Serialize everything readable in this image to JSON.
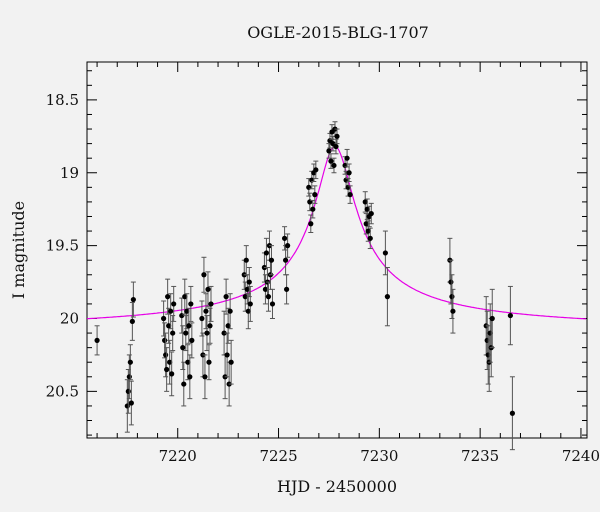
{
  "chart_data": {
    "type": "scatter",
    "title": "OGLE-2015-BLG-1707",
    "xlabel": "HJD - 2450000",
    "ylabel": "I magnitude",
    "xlim": [
      7215.5,
      7240.3
    ],
    "ylim": [
      20.82,
      18.24
    ],
    "x_ticks": [
      7220,
      7225,
      7230,
      7235,
      7240
    ],
    "x_tick_labels": [
      "7220",
      "7225",
      "7230",
      "7235",
      "7240"
    ],
    "y_ticks": [
      18.5,
      19,
      19.5,
      20,
      20.5
    ],
    "y_tick_labels": [
      "18.5",
      "19",
      "19.5",
      "20",
      "20.5"
    ],
    "grid": false,
    "model_curve": {
      "color": "#e600e6",
      "baseline": 20.1,
      "t0": 7227.8,
      "peak": 18.82,
      "width": 1.9
    },
    "series": [
      {
        "points": [
          [
            7216.0,
            20.15,
            0.1
          ],
          [
            7217.5,
            20.6,
            0.18
          ],
          [
            7217.55,
            20.5,
            0.15
          ],
          [
            7217.6,
            20.4,
            0.15
          ],
          [
            7217.65,
            20.3,
            0.12
          ],
          [
            7217.7,
            20.58,
            0.15
          ],
          [
            7217.75,
            20.02,
            0.13
          ],
          [
            7217.8,
            19.87,
            0.12
          ],
          [
            7219.3,
            20.0,
            0.12
          ],
          [
            7219.35,
            20.15,
            0.12
          ],
          [
            7219.4,
            20.25,
            0.15
          ],
          [
            7219.45,
            20.35,
            0.15
          ],
          [
            7219.5,
            19.85,
            0.12
          ],
          [
            7219.55,
            20.05,
            0.12
          ],
          [
            7219.6,
            20.3,
            0.15
          ],
          [
            7219.65,
            19.95,
            0.12
          ],
          [
            7219.7,
            20.38,
            0.15
          ],
          [
            7219.75,
            20.1,
            0.12
          ],
          [
            7219.8,
            19.9,
            0.12
          ],
          [
            7220.2,
            19.98,
            0.12
          ],
          [
            7220.25,
            20.2,
            0.15
          ],
          [
            7220.3,
            20.45,
            0.15
          ],
          [
            7220.35,
            19.85,
            0.12
          ],
          [
            7220.4,
            20.1,
            0.12
          ],
          [
            7220.45,
            19.95,
            0.12
          ],
          [
            7220.5,
            20.3,
            0.12
          ],
          [
            7220.55,
            20.05,
            0.12
          ],
          [
            7220.6,
            20.4,
            0.15
          ],
          [
            7220.65,
            19.9,
            0.12
          ],
          [
            7220.7,
            20.15,
            0.12
          ],
          [
            7221.2,
            20.0,
            0.12
          ],
          [
            7221.25,
            20.25,
            0.15
          ],
          [
            7221.3,
            19.7,
            0.12
          ],
          [
            7221.35,
            20.4,
            0.15
          ],
          [
            7221.4,
            19.95,
            0.12
          ],
          [
            7221.45,
            20.1,
            0.12
          ],
          [
            7221.5,
            19.8,
            0.12
          ],
          [
            7221.55,
            20.3,
            0.12
          ],
          [
            7221.6,
            20.05,
            0.12
          ],
          [
            7221.65,
            19.9,
            0.12
          ],
          [
            7222.3,
            20.1,
            0.15
          ],
          [
            7222.35,
            20.4,
            0.15
          ],
          [
            7222.4,
            19.85,
            0.12
          ],
          [
            7222.45,
            20.25,
            0.15
          ],
          [
            7222.5,
            20.05,
            0.12
          ],
          [
            7222.55,
            20.45,
            0.15
          ],
          [
            7222.6,
            19.95,
            0.12
          ],
          [
            7222.65,
            20.3,
            0.15
          ],
          [
            7223.3,
            19.7,
            0.1
          ],
          [
            7223.35,
            19.85,
            0.1
          ],
          [
            7223.4,
            19.6,
            0.1
          ],
          [
            7223.45,
            19.8,
            0.1
          ],
          [
            7223.5,
            19.95,
            0.12
          ],
          [
            7223.55,
            19.75,
            0.1
          ],
          [
            7223.6,
            19.9,
            0.12
          ],
          [
            7224.3,
            19.65,
            0.1
          ],
          [
            7224.35,
            19.8,
            0.1
          ],
          [
            7224.4,
            19.55,
            0.1
          ],
          [
            7224.45,
            19.75,
            0.1
          ],
          [
            7224.5,
            19.85,
            0.1
          ],
          [
            7224.55,
            19.5,
            0.1
          ],
          [
            7224.6,
            19.7,
            0.1
          ],
          [
            7224.65,
            19.6,
            0.1
          ],
          [
            7224.7,
            19.9,
            0.1
          ],
          [
            7225.3,
            19.45,
            0.08
          ],
          [
            7225.35,
            19.6,
            0.1
          ],
          [
            7225.4,
            19.8,
            0.1
          ],
          [
            7225.45,
            19.5,
            0.08
          ],
          [
            7226.5,
            19.1,
            0.06
          ],
          [
            7226.55,
            19.2,
            0.06
          ],
          [
            7226.6,
            19.35,
            0.06
          ],
          [
            7226.65,
            19.05,
            0.06
          ],
          [
            7226.7,
            19.25,
            0.06
          ],
          [
            7226.75,
            19.0,
            0.06
          ],
          [
            7226.8,
            19.15,
            0.06
          ],
          [
            7226.85,
            18.98,
            0.06
          ],
          [
            7227.5,
            18.85,
            0.05
          ],
          [
            7227.55,
            18.78,
            0.05
          ],
          [
            7227.6,
            18.92,
            0.05
          ],
          [
            7227.65,
            18.72,
            0.05
          ],
          [
            7227.7,
            18.8,
            0.05
          ],
          [
            7227.75,
            18.95,
            0.05
          ],
          [
            7227.8,
            18.7,
            0.05
          ],
          [
            7227.85,
            18.82,
            0.05
          ],
          [
            7227.9,
            18.75,
            0.05
          ],
          [
            7228.3,
            18.95,
            0.06
          ],
          [
            7228.35,
            19.05,
            0.06
          ],
          [
            7228.4,
            18.9,
            0.06
          ],
          [
            7228.45,
            19.1,
            0.06
          ],
          [
            7228.5,
            19.0,
            0.06
          ],
          [
            7228.55,
            19.15,
            0.06
          ],
          [
            7229.3,
            19.2,
            0.07
          ],
          [
            7229.35,
            19.35,
            0.07
          ],
          [
            7229.4,
            19.25,
            0.07
          ],
          [
            7229.45,
            19.4,
            0.07
          ],
          [
            7229.5,
            19.3,
            0.07
          ],
          [
            7229.55,
            19.45,
            0.07
          ],
          [
            7229.6,
            19.28,
            0.07
          ],
          [
            7230.3,
            19.55,
            0.15
          ],
          [
            7230.4,
            19.85,
            0.2
          ],
          [
            7233.5,
            19.6,
            0.15
          ],
          [
            7233.55,
            19.75,
            0.15
          ],
          [
            7233.6,
            19.85,
            0.15
          ],
          [
            7233.65,
            19.95,
            0.15
          ],
          [
            7235.3,
            20.05,
            0.2
          ],
          [
            7235.35,
            20.15,
            0.2
          ],
          [
            7235.4,
            20.25,
            0.2
          ],
          [
            7235.45,
            20.3,
            0.2
          ],
          [
            7235.5,
            20.1,
            0.2
          ],
          [
            7235.55,
            20.2,
            0.2
          ],
          [
            7235.6,
            20.0,
            0.2
          ],
          [
            7236.5,
            19.98,
            0.2
          ],
          [
            7236.6,
            20.65,
            0.25
          ]
        ]
      }
    ]
  }
}
